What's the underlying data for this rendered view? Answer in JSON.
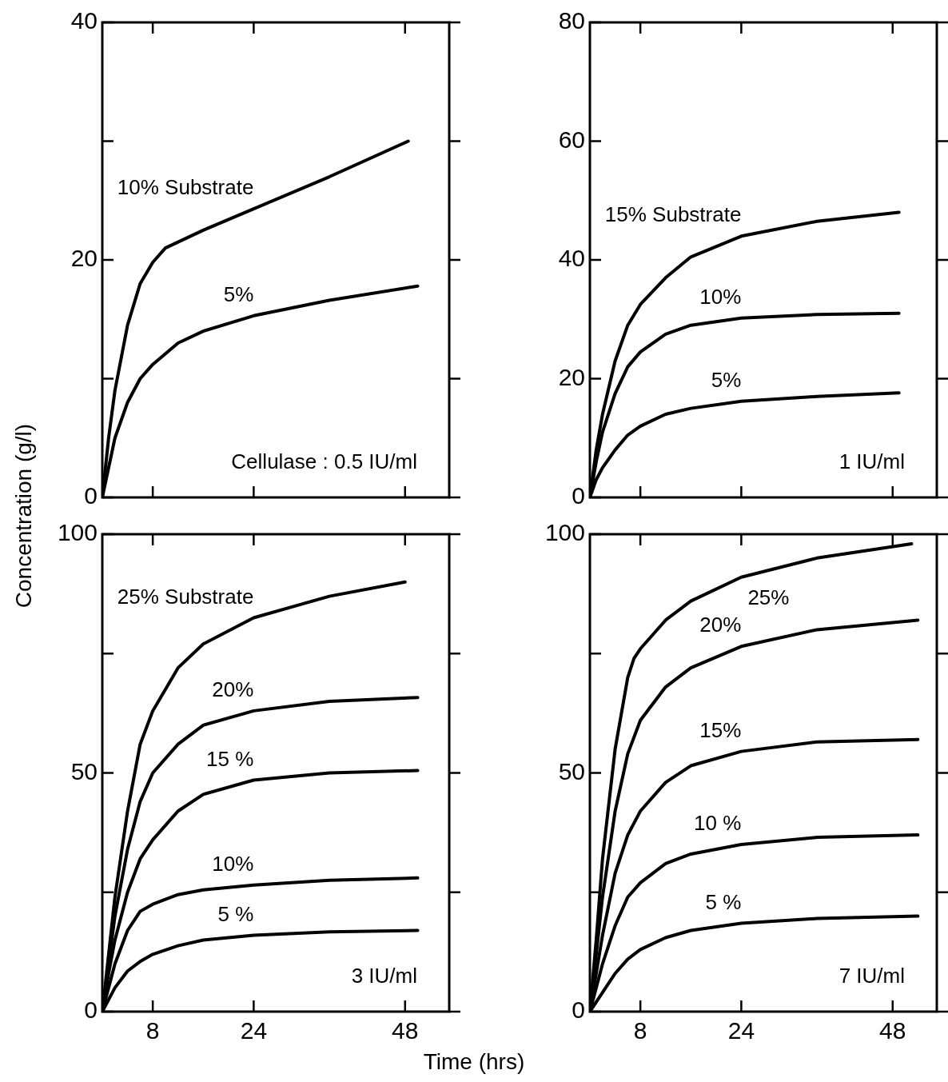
{
  "chart_data": [
    {
      "type": "line",
      "xlim": [
        0,
        55
      ],
      "xticks": [
        8,
        24,
        48
      ],
      "ylim": [
        0,
        40
      ],
      "yticks": [
        0,
        {
          "value": 10,
          "label": null
        },
        20,
        {
          "value": 30,
          "label": null
        },
        40
      ],
      "tick_labels": "y",
      "marker": "none",
      "line_style": "solid",
      "legend": false,
      "grid": false,
      "annotations": [
        "Cellulase : 0.5 IU/ml"
      ],
      "series": [
        {
          "name": "10% Substrate",
          "color": "#000000",
          "x": [
            0,
            1,
            2,
            4,
            6,
            8,
            10,
            16,
            24,
            36,
            48.5
          ],
          "values": [
            0,
            5,
            9,
            14.5,
            18,
            19.8,
            21,
            22.5,
            24.3,
            27,
            30
          ]
        },
        {
          "name": "5%",
          "color": "#000000",
          "x": [
            0,
            2,
            4,
            6,
            8,
            12,
            16,
            24,
            36,
            50
          ],
          "values": [
            0,
            5,
            8,
            10,
            11.2,
            13,
            14,
            15.3,
            16.6,
            17.8
          ]
        }
      ]
    },
    {
      "type": "line",
      "xlim": [
        0,
        55
      ],
      "xticks": [
        8,
        24,
        48
      ],
      "ylim": [
        0,
        80
      ],
      "yticks": [
        0,
        20,
        40,
        60,
        80
      ],
      "tick_labels": "y",
      "marker": "none",
      "line_style": "solid",
      "legend": false,
      "grid": false,
      "annotations": [
        "1 IU/ml"
      ],
      "series": [
        {
          "name": "15% Substrate",
          "color": "#000000",
          "x": [
            0,
            1,
            2,
            4,
            6,
            8,
            12,
            16,
            24,
            36,
            49
          ],
          "values": [
            0,
            8,
            14,
            23,
            29,
            32.5,
            37,
            40.5,
            44,
            46.5,
            48
          ]
        },
        {
          "name": "10%",
          "color": "#000000",
          "x": [
            0,
            1,
            2,
            4,
            6,
            8,
            12,
            16,
            24,
            36,
            49
          ],
          "values": [
            0,
            6,
            11,
            17.5,
            22,
            24.5,
            27.5,
            29,
            30.2,
            30.8,
            31
          ]
        },
        {
          "name": "5%",
          "color": "#000000",
          "x": [
            0,
            1,
            2,
            4,
            6,
            8,
            12,
            16,
            24,
            36,
            49
          ],
          "values": [
            0,
            3,
            5,
            8,
            10.5,
            12,
            14,
            15,
            16.2,
            17,
            17.6
          ]
        }
      ]
    },
    {
      "type": "line",
      "xlim": [
        0,
        55
      ],
      "xticks": [
        8,
        24,
        48
      ],
      "ylim": [
        0,
        100
      ],
      "yticks": [
        0,
        {
          "value": 25,
          "label": null
        },
        50,
        {
          "value": 75,
          "label": null
        },
        100
      ],
      "xlabel": "Time (hrs)",
      "ylabel": "Concentration (g/l)",
      "marker": "none",
      "line_style": "solid",
      "legend": false,
      "grid": false,
      "annotations": [
        "3 IU/ml"
      ],
      "series": [
        {
          "name": "25% Substrate",
          "color": "#000000",
          "x": [
            0,
            1,
            2,
            4,
            6,
            8,
            12,
            16,
            24,
            36,
            48
          ],
          "values": [
            0,
            12,
            24,
            42,
            56,
            63,
            72,
            77,
            82.5,
            87,
            90
          ]
        },
        {
          "name": "20%",
          "color": "#000000",
          "x": [
            0,
            1,
            2,
            4,
            6,
            8,
            12,
            16,
            24,
            36,
            50
          ],
          "values": [
            0,
            10,
            20,
            34,
            44,
            50,
            56,
            60,
            63,
            65,
            65.8
          ]
        },
        {
          "name": "15 %",
          "color": "#000000",
          "x": [
            0,
            1,
            2,
            4,
            6,
            8,
            12,
            16,
            24,
            36,
            50
          ],
          "values": [
            0,
            8,
            15,
            25,
            32,
            36,
            42,
            45.5,
            48.5,
            50,
            50.5
          ]
        },
        {
          "name": "10%",
          "color": "#000000",
          "x": [
            0,
            2,
            4,
            6,
            8,
            12,
            16,
            24,
            36,
            50
          ],
          "values": [
            0,
            10,
            17,
            21,
            22.5,
            24.5,
            25.5,
            26.5,
            27.5,
            28
          ]
        },
        {
          "name": "5 %",
          "color": "#000000",
          "x": [
            0,
            2,
            4,
            6,
            8,
            12,
            16,
            24,
            36,
            50
          ],
          "values": [
            0,
            5,
            8.5,
            10.5,
            12,
            13.8,
            15,
            16,
            16.7,
            17
          ]
        }
      ]
    },
    {
      "type": "line",
      "xlim": [
        0,
        55
      ],
      "xticks": [
        8,
        24,
        48
      ],
      "ylim": [
        0,
        100
      ],
      "yticks": [
        0,
        {
          "value": 25,
          "label": null
        },
        50,
        {
          "value": 75,
          "label": null
        },
        100
      ],
      "marker": "none",
      "line_style": "solid",
      "legend": false,
      "grid": false,
      "annotations": [
        "7 IU/ml"
      ],
      "series": [
        {
          "name": "25%",
          "color": "#000000",
          "x": [
            0,
            1,
            2,
            4,
            6,
            7,
            8,
            12,
            16,
            24,
            36,
            51
          ],
          "values": [
            0,
            15,
            32,
            55,
            70,
            74,
            76,
            82,
            86,
            91,
            95,
            98
          ]
        },
        {
          "name": "20%",
          "color": "#000000",
          "x": [
            0,
            1,
            2,
            4,
            6,
            8,
            12,
            16,
            24,
            36,
            52
          ],
          "values": [
            0,
            12,
            24,
            42,
            54,
            61,
            68,
            72,
            76.5,
            80,
            82
          ]
        },
        {
          "name": "15%",
          "color": "#000000",
          "x": [
            0,
            1,
            2,
            4,
            6,
            8,
            12,
            16,
            24,
            36,
            52
          ],
          "values": [
            0,
            8,
            16,
            29,
            37,
            42,
            48,
            51.5,
            54.5,
            56.5,
            57
          ]
        },
        {
          "name": "10 %",
          "color": "#000000",
          "x": [
            0,
            1,
            2,
            4,
            6,
            8,
            12,
            16,
            24,
            36,
            52
          ],
          "values": [
            0,
            5,
            10,
            18,
            24,
            27,
            31,
            33,
            35,
            36.5,
            37
          ]
        },
        {
          "name": "5 %",
          "color": "#000000",
          "x": [
            0,
            2,
            4,
            6,
            8,
            12,
            16,
            24,
            36,
            52
          ],
          "values": [
            0,
            4,
            8,
            11,
            13,
            15.5,
            17,
            18.5,
            19.5,
            20
          ]
        }
      ]
    }
  ]
}
